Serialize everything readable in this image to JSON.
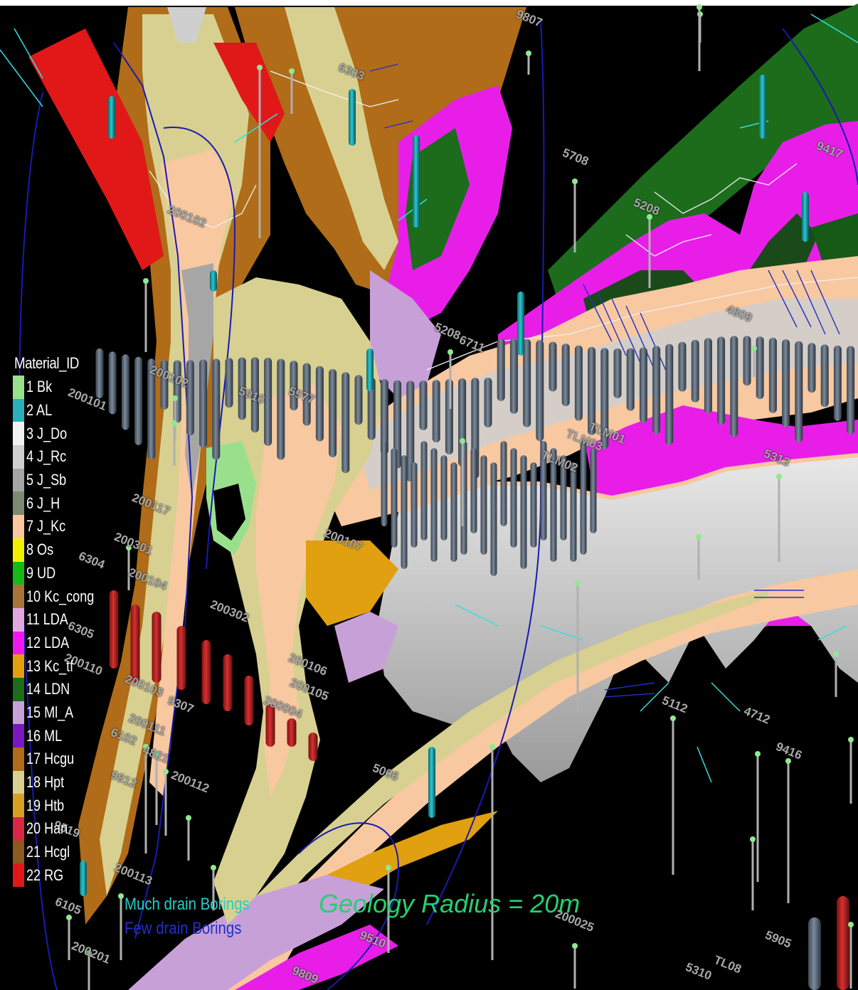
{
  "view": {
    "background": "#000000"
  },
  "legend": {
    "title": "Material_ID",
    "items": [
      {
        "id": "1",
        "name": "Bk",
        "color": "#9ae08c"
      },
      {
        "id": "2",
        "name": "AL",
        "color": "#2ab0b8"
      },
      {
        "id": "3",
        "name": "J_Do",
        "color": "#f2f2f2"
      },
      {
        "id": "4",
        "name": "J_Rc",
        "color": "#cfcfcf"
      },
      {
        "id": "5",
        "name": "J_Sb",
        "color": "#a6a6a6"
      },
      {
        "id": "6",
        "name": "J_H",
        "color": "#7c8a74"
      },
      {
        "id": "7",
        "name": "J_Kc",
        "color": "#f8c8a0"
      },
      {
        "id": "8",
        "name": "Os",
        "color": "#f0f000"
      },
      {
        "id": "9",
        "name": "UD",
        "color": "#18b818"
      },
      {
        "id": "10",
        "name": "Kc_cong",
        "color": "#a8743c"
      },
      {
        "id": "11",
        "name": "LDA",
        "color": "#e0a8e0"
      },
      {
        "id": "12",
        "name": "LDA",
        "color": "#f018f0"
      },
      {
        "id": "13",
        "name": "Kc_tf",
        "color": "#e0a010"
      },
      {
        "id": "14",
        "name": "LDN",
        "color": "#1c6c1c"
      },
      {
        "id": "15",
        "name": "Ml_A",
        "color": "#c8a0d8"
      },
      {
        "id": "16",
        "name": "ML",
        "color": "#7818c0"
      },
      {
        "id": "17",
        "name": "Hcgu",
        "color": "#b06c18"
      },
      {
        "id": "18",
        "name": "Hpt",
        "color": "#d8d090"
      },
      {
        "id": "19",
        "name": "Htb",
        "color": "#d8a020"
      },
      {
        "id": "20",
        "name": "Han",
        "color": "#d82848"
      },
      {
        "id": "21",
        "name": "Hcgl",
        "color": "#8a5a20"
      },
      {
        "id": "22",
        "name": "RG",
        "color": "#e01818"
      }
    ]
  },
  "annotations": {
    "much_drain": "Much drain Borings",
    "few_drain": "Few drain Borings",
    "geology_radius": "Geology Radius = 20m"
  },
  "annotation_colors": {
    "much_drain": "#1fd0c8",
    "few_drain": "#2030c8",
    "geology_radius": "#24d070"
  },
  "boring_labels": [
    "6303",
    "9807",
    "5708",
    "9417",
    "5208",
    "5208",
    "4809",
    "200101",
    "200102",
    "200102",
    "5910",
    "5977",
    "200117",
    "200107",
    "200301",
    "6304",
    "200104",
    "6305",
    "200110",
    "200103",
    "9307",
    "200111",
    "6102",
    "4821",
    "200112",
    "9812",
    "9519",
    "200113",
    "6105",
    "200201",
    "9510",
    "200025",
    "9809",
    "4712",
    "9416",
    "5112",
    "5313",
    "TLM03",
    "TLM02",
    "TLM01",
    "5905",
    "TL08",
    "5310",
    "200106",
    "200105",
    "200004",
    "200302",
    "5006",
    "6711"
  ]
}
